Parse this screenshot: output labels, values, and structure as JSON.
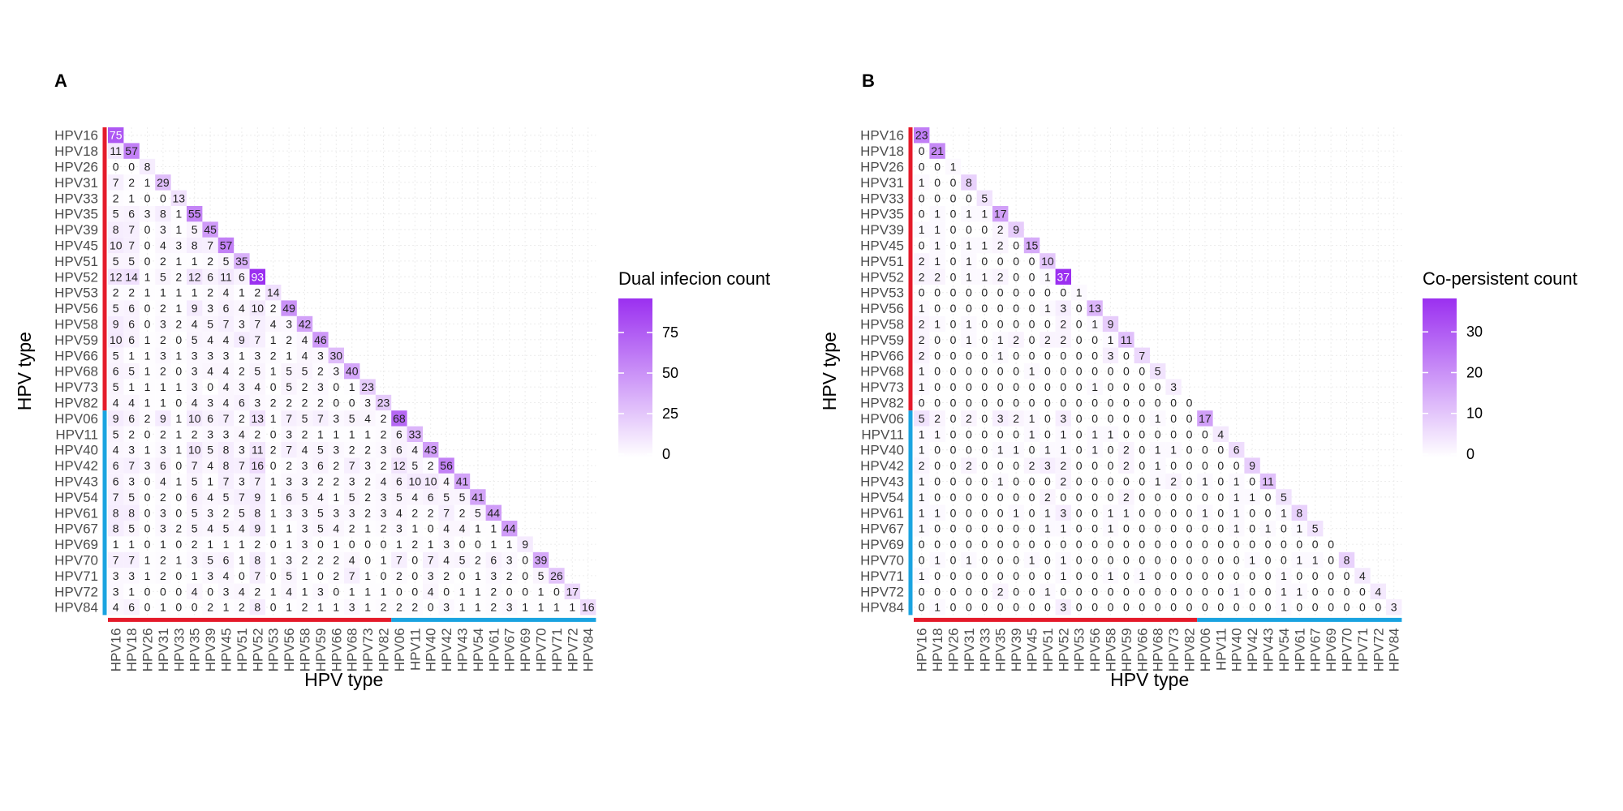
{
  "chart_data": [
    {
      "type": "heatmap",
      "panel": "A",
      "xlabel": "HPV type",
      "ylabel": "HPV type",
      "legend_title": "Dual infecion count",
      "legend_ticks": [
        0,
        25,
        50,
        75
      ],
      "color_range": [
        0,
        93
      ],
      "categories": [
        "HPV16",
        "HPV18",
        "HPV26",
        "HPV31",
        "HPV33",
        "HPV35",
        "HPV39",
        "HPV45",
        "HPV51",
        "HPV52",
        "HPV53",
        "HPV56",
        "HPV58",
        "HPV59",
        "HPV66",
        "HPV68",
        "HPV73",
        "HPV82",
        "HPV06",
        "HPV11",
        "HPV40",
        "HPV42",
        "HPV43",
        "HPV54",
        "HPV61",
        "HPV67",
        "HPV69",
        "HPV70",
        "HPV71",
        "HPV72",
        "HPV84"
      ],
      "group_split_index": 18,
      "matrix": [
        [
          75
        ],
        [
          11,
          57
        ],
        [
          0,
          0,
          8
        ],
        [
          7,
          2,
          1,
          29
        ],
        [
          2,
          1,
          0,
          0,
          13
        ],
        [
          5,
          6,
          3,
          8,
          1,
          55
        ],
        [
          8,
          7,
          0,
          3,
          1,
          5,
          45
        ],
        [
          10,
          7,
          0,
          4,
          3,
          8,
          7,
          57
        ],
        [
          5,
          5,
          0,
          2,
          1,
          1,
          2,
          5,
          35
        ],
        [
          12,
          14,
          1,
          5,
          2,
          12,
          6,
          11,
          6,
          93
        ],
        [
          2,
          2,
          1,
          1,
          1,
          1,
          2,
          4,
          1,
          2,
          14
        ],
        [
          5,
          6,
          0,
          2,
          1,
          9,
          3,
          6,
          4,
          10,
          2,
          49
        ],
        [
          9,
          6,
          0,
          3,
          2,
          4,
          5,
          7,
          3,
          7,
          4,
          3,
          42
        ],
        [
          10,
          6,
          1,
          2,
          0,
          5,
          4,
          4,
          9,
          7,
          1,
          2,
          4,
          46
        ],
        [
          5,
          1,
          1,
          3,
          1,
          3,
          3,
          3,
          1,
          3,
          2,
          1,
          4,
          3,
          30
        ],
        [
          6,
          5,
          1,
          2,
          0,
          3,
          4,
          4,
          2,
          5,
          1,
          5,
          5,
          2,
          3,
          40
        ],
        [
          5,
          1,
          1,
          1,
          1,
          3,
          0,
          4,
          3,
          4,
          0,
          5,
          2,
          3,
          0,
          1,
          23
        ],
        [
          4,
          4,
          1,
          1,
          0,
          4,
          3,
          4,
          6,
          3,
          2,
          2,
          2,
          2,
          0,
          0,
          3,
          23
        ],
        [
          9,
          6,
          2,
          9,
          1,
          10,
          6,
          7,
          2,
          13,
          1,
          7,
          5,
          7,
          3,
          5,
          4,
          2,
          68
        ],
        [
          5,
          2,
          0,
          2,
          1,
          2,
          3,
          3,
          4,
          2,
          0,
          3,
          2,
          1,
          1,
          1,
          1,
          2,
          6,
          33
        ],
        [
          4,
          3,
          1,
          3,
          1,
          10,
          5,
          8,
          3,
          11,
          2,
          7,
          4,
          5,
          3,
          2,
          2,
          3,
          6,
          4,
          43
        ],
        [
          6,
          7,
          3,
          6,
          0,
          7,
          4,
          8,
          7,
          16,
          0,
          2,
          3,
          6,
          2,
          7,
          3,
          2,
          12,
          5,
          2,
          56
        ],
        [
          6,
          3,
          0,
          4,
          1,
          5,
          1,
          7,
          3,
          7,
          1,
          3,
          3,
          2,
          2,
          3,
          2,
          4,
          6,
          10,
          10,
          4,
          41
        ],
        [
          7,
          5,
          0,
          2,
          0,
          6,
          4,
          5,
          7,
          9,
          1,
          6,
          5,
          4,
          1,
          5,
          2,
          3,
          5,
          4,
          6,
          5,
          5,
          41
        ],
        [
          8,
          8,
          0,
          3,
          0,
          5,
          3,
          2,
          5,
          8,
          1,
          3,
          3,
          5,
          3,
          3,
          2,
          3,
          4,
          2,
          2,
          7,
          2,
          5,
          44
        ],
        [
          8,
          5,
          0,
          3,
          2,
          5,
          4,
          5,
          4,
          9,
          1,
          1,
          3,
          5,
          4,
          2,
          1,
          2,
          3,
          1,
          0,
          4,
          4,
          1,
          1,
          44
        ],
        [
          1,
          1,
          0,
          1,
          0,
          2,
          1,
          1,
          1,
          2,
          0,
          1,
          3,
          0,
          1,
          0,
          0,
          0,
          1,
          2,
          1,
          3,
          0,
          0,
          1,
          1,
          9
        ],
        [
          7,
          7,
          1,
          2,
          1,
          3,
          5,
          6,
          1,
          8,
          1,
          3,
          2,
          2,
          2,
          4,
          0,
          1,
          7,
          0,
          7,
          4,
          5,
          2,
          6,
          3,
          0,
          39
        ],
        [
          3,
          3,
          1,
          2,
          0,
          1,
          3,
          4,
          0,
          7,
          0,
          5,
          1,
          0,
          2,
          7,
          1,
          0,
          2,
          0,
          3,
          2,
          0,
          1,
          3,
          2,
          0,
          5,
          26
        ],
        [
          3,
          1,
          0,
          0,
          0,
          4,
          0,
          3,
          4,
          2,
          1,
          4,
          1,
          3,
          0,
          1,
          1,
          1,
          0,
          0,
          4,
          0,
          1,
          1,
          2,
          0,
          0,
          1,
          0,
          17
        ],
        [
          4,
          6,
          0,
          1,
          0,
          0,
          2,
          1,
          2,
          8,
          0,
          1,
          2,
          1,
          1,
          3,
          1,
          2,
          2,
          2,
          0,
          3,
          1,
          1,
          2,
          3,
          1,
          1,
          1,
          1,
          16
        ]
      ]
    },
    {
      "type": "heatmap",
      "panel": "B",
      "xlabel": "HPV type",
      "ylabel": "HPV type",
      "legend_title": "Co-persistent count",
      "legend_ticks": [
        0,
        10,
        20,
        30
      ],
      "color_range": [
        0,
        37
      ],
      "categories": [
        "HPV16",
        "HPV18",
        "HPV26",
        "HPV31",
        "HPV33",
        "HPV35",
        "HPV39",
        "HPV45",
        "HPV51",
        "HPV52",
        "HPV53",
        "HPV56",
        "HPV58",
        "HPV59",
        "HPV66",
        "HPV68",
        "HPV73",
        "HPV82",
        "HPV06",
        "HPV11",
        "HPV40",
        "HPV42",
        "HPV43",
        "HPV54",
        "HPV61",
        "HPV67",
        "HPV69",
        "HPV70",
        "HPV71",
        "HPV72",
        "HPV84"
      ],
      "group_split_index": 18,
      "matrix": [
        [
          23
        ],
        [
          0,
          21
        ],
        [
          0,
          0,
          1
        ],
        [
          1,
          0,
          0,
          8
        ],
        [
          0,
          0,
          0,
          0,
          5
        ],
        [
          0,
          1,
          0,
          1,
          1,
          17
        ],
        [
          1,
          1,
          0,
          0,
          0,
          2,
          9
        ],
        [
          0,
          1,
          0,
          1,
          1,
          2,
          0,
          15
        ],
        [
          2,
          1,
          0,
          1,
          0,
          0,
          0,
          0,
          10
        ],
        [
          2,
          2,
          0,
          1,
          1,
          2,
          0,
          0,
          1,
          37
        ],
        [
          0,
          0,
          0,
          0,
          0,
          0,
          0,
          0,
          0,
          0,
          1
        ],
        [
          1,
          0,
          0,
          0,
          0,
          0,
          0,
          0,
          1,
          3,
          0,
          13
        ],
        [
          2,
          1,
          0,
          1,
          0,
          0,
          0,
          0,
          0,
          2,
          0,
          1,
          9
        ],
        [
          2,
          0,
          0,
          1,
          0,
          1,
          2,
          0,
          2,
          2,
          0,
          0,
          1,
          11
        ],
        [
          2,
          0,
          0,
          0,
          0,
          1,
          0,
          0,
          0,
          0,
          0,
          0,
          3,
          0,
          7
        ],
        [
          1,
          0,
          0,
          0,
          0,
          0,
          0,
          1,
          0,
          0,
          0,
          0,
          0,
          0,
          0,
          5
        ],
        [
          1,
          0,
          0,
          0,
          0,
          0,
          0,
          0,
          0,
          0,
          0,
          1,
          0,
          0,
          0,
          0,
          3
        ],
        [
          0,
          0,
          0,
          0,
          0,
          0,
          0,
          0,
          0,
          0,
          0,
          0,
          0,
          0,
          0,
          0,
          0,
          0
        ],
        [
          5,
          2,
          0,
          2,
          0,
          3,
          2,
          1,
          0,
          3,
          0,
          0,
          0,
          0,
          0,
          1,
          0,
          0,
          17
        ],
        [
          1,
          1,
          0,
          0,
          0,
          0,
          0,
          1,
          0,
          1,
          0,
          1,
          1,
          0,
          0,
          0,
          0,
          0,
          0,
          4
        ],
        [
          1,
          0,
          0,
          0,
          0,
          1,
          1,
          0,
          1,
          1,
          0,
          1,
          0,
          2,
          0,
          1,
          1,
          0,
          0,
          0,
          6
        ],
        [
          2,
          0,
          0,
          2,
          0,
          0,
          0,
          2,
          3,
          2,
          0,
          0,
          0,
          2,
          0,
          1,
          0,
          0,
          0,
          0,
          0,
          9
        ],
        [
          1,
          0,
          0,
          0,
          0,
          1,
          0,
          0,
          0,
          2,
          0,
          0,
          0,
          0,
          0,
          1,
          2,
          0,
          1,
          0,
          1,
          0,
          11
        ],
        [
          1,
          0,
          0,
          0,
          0,
          0,
          0,
          0,
          2,
          0,
          0,
          0,
          0,
          2,
          0,
          0,
          0,
          0,
          0,
          0,
          1,
          1,
          0,
          5
        ],
        [
          1,
          1,
          0,
          0,
          0,
          0,
          1,
          0,
          1,
          3,
          0,
          0,
          1,
          1,
          0,
          0,
          0,
          0,
          1,
          0,
          1,
          0,
          0,
          1,
          8
        ],
        [
          1,
          0,
          0,
          0,
          0,
          0,
          0,
          0,
          1,
          1,
          0,
          0,
          1,
          0,
          0,
          0,
          0,
          0,
          0,
          0,
          1,
          0,
          1,
          0,
          1,
          5
        ],
        [
          0,
          0,
          0,
          0,
          0,
          0,
          0,
          0,
          0,
          0,
          0,
          0,
          0,
          0,
          0,
          0,
          0,
          0,
          0,
          0,
          0,
          0,
          0,
          0,
          0,
          0,
          0
        ],
        [
          0,
          1,
          0,
          1,
          0,
          0,
          0,
          1,
          0,
          1,
          0,
          0,
          0,
          0,
          0,
          0,
          0,
          0,
          0,
          0,
          0,
          1,
          0,
          0,
          1,
          1,
          0,
          8
        ],
        [
          1,
          0,
          0,
          0,
          0,
          0,
          0,
          0,
          0,
          1,
          0,
          0,
          1,
          0,
          1,
          0,
          0,
          0,
          0,
          0,
          0,
          0,
          0,
          1,
          0,
          0,
          0,
          0,
          4
        ],
        [
          0,
          0,
          0,
          0,
          0,
          2,
          0,
          0,
          1,
          0,
          0,
          0,
          0,
          0,
          0,
          0,
          0,
          0,
          0,
          0,
          1,
          0,
          0,
          1,
          1,
          0,
          0,
          0,
          0,
          4
        ],
        [
          0,
          1,
          0,
          0,
          0,
          0,
          0,
          0,
          0,
          3,
          0,
          0,
          0,
          0,
          0,
          0,
          0,
          0,
          0,
          0,
          0,
          0,
          0,
          1,
          0,
          0,
          0,
          0,
          0,
          0,
          3
        ]
      ]
    }
  ],
  "colors": {
    "high_risk_group": "#e41a2a",
    "low_risk_group": "#1aa3e0",
    "scale_low": "#ffffff",
    "scale_high": "#9b30f0"
  }
}
